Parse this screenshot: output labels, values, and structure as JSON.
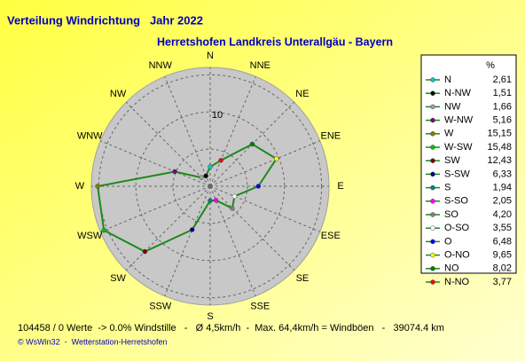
{
  "chart_data": {
    "type": "radar",
    "title": "Verteilung Windrichtung   Jahr 2022",
    "subtitle": "Herretshofen Landkreis Unterallgäu - Bayern",
    "categories": [
      "N",
      "NNW",
      "NW",
      "WNW",
      "W",
      "WSW",
      "SW",
      "SSW",
      "S",
      "SSE",
      "SE",
      "ESE",
      "E",
      "ENE",
      "NE",
      "NNE"
    ],
    "legend_title": "%",
    "legend_labels": [
      "N",
      "N-NW",
      "NW",
      "W-NW",
      "W",
      "W-SW",
      "SW",
      "S-SW",
      "S",
      "S-SO",
      "SO",
      "O-SO",
      "O",
      "O-NO",
      "NO",
      "N-NO"
    ],
    "values": [
      2.61,
      1.51,
      1.66,
      5.16,
      15.15,
      15.48,
      12.43,
      6.33,
      1.94,
      2.05,
      4.2,
      3.55,
      6.48,
      9.65,
      8.02,
      3.77
    ],
    "value_labels": [
      "2,61",
      "1,51",
      "1,66",
      "5,16",
      "15,15",
      "15,48",
      "12,43",
      "6,33",
      "1,94",
      "2,05",
      "4,20",
      "3,55",
      "6,48",
      "9,65",
      "8,02",
      "3,77"
    ],
    "marker_colors": [
      "#00c8c8",
      "#000000",
      "#a0a0a0",
      "#800080",
      "#808000",
      "#00c000",
      "#800000",
      "#000080",
      "#008080",
      "#ff00ff",
      "#808080",
      "#ffffff",
      "#0000ff",
      "#ffff00",
      "#008000",
      "#ff0000"
    ],
    "color": "#1a8a1a",
    "rlim": [
      0,
      16
    ],
    "rticks": [
      10
    ],
    "rgrid": [
      5,
      10,
      15
    ],
    "footer": "104458 / 0 Werte  -> 0.0% Windstille   -   Ø 4,5km/h  -  Max. 64,4km/h = Windböen   -   39074.4 km",
    "credit": "© WsWin32  -  Wetterstation-Herretshofen"
  }
}
